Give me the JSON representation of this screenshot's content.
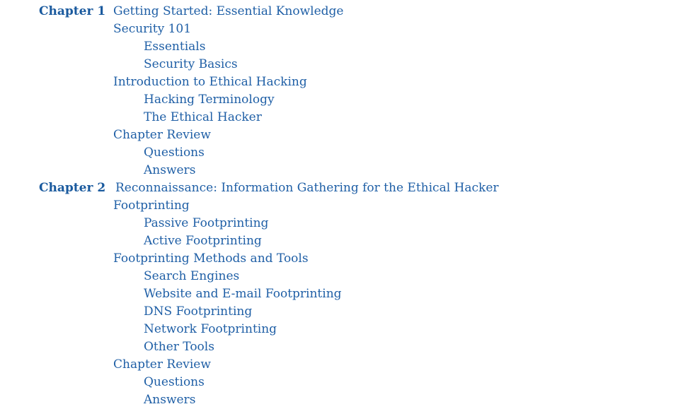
{
  "chapters": [
    {
      "label": "Chapter 1",
      "title": "Getting Started: Essential Knowledge",
      "sections": [
        {
          "title": "Security 101",
          "subsections": [
            "Essentials",
            "Security Basics"
          ]
        },
        {
          "title": "Introduction to Ethical Hacking",
          "subsections": [
            "Hacking Terminology",
            "The Ethical Hacker"
          ]
        },
        {
          "title": "Chapter Review",
          "subsections": [
            "Questions",
            "Answers"
          ]
        }
      ]
    },
    {
      "label": "Chapter 2",
      "title": "Reconnaissance: Information Gathering for the Ethical Hacker",
      "sections": [
        {
          "title": "Footprinting",
          "subsections": [
            "Passive Footprinting",
            "Active Footprinting"
          ]
        },
        {
          "title": "Footprinting Methods and Tools",
          "subsections": [
            "Search Engines",
            "Website and E-mail Footprinting",
            "DNS Footprinting",
            "Network Footprinting",
            "Other Tools"
          ]
        },
        {
          "title": "Chapter Review",
          "subsections": [
            "Questions",
            "Answers"
          ]
        }
      ]
    }
  ],
  "colors": {
    "link": "#1f5fa6",
    "background": "#ffffff"
  }
}
